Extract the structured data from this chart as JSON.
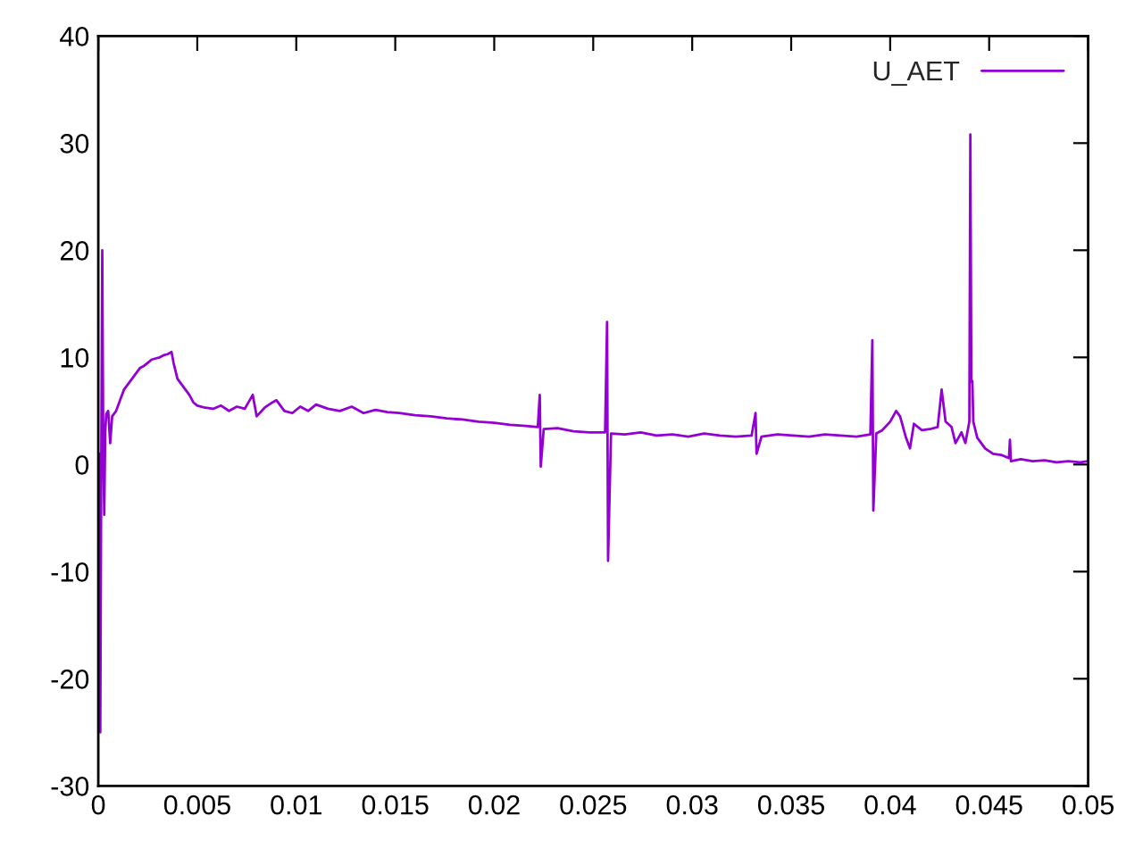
{
  "chart_data": {
    "type": "line",
    "legend": "top right",
    "grid": false,
    "marker": "none",
    "line_style": "solid",
    "xlim": [
      0,
      0.05
    ],
    "xticks": [
      0,
      0.005,
      0.01,
      0.015,
      0.02,
      0.025,
      0.03,
      0.035,
      0.04,
      0.045,
      0.05
    ],
    "ylim": [
      -30,
      40
    ],
    "yticks": [
      -30,
      -20,
      -10,
      0,
      10,
      20,
      30,
      40
    ],
    "series": [
      {
        "name": "U_AET",
        "color": "#9400d3",
        "x": [
          5e-05,
          0.0001,
          0.00015,
          0.0002,
          0.00025,
          0.0003,
          0.00035,
          0.0004,
          0.0005,
          0.0006,
          0.0007,
          0.0009,
          0.0011,
          0.0013,
          0.0015,
          0.0017,
          0.0019,
          0.0021,
          0.0023,
          0.0025,
          0.0027,
          0.0029,
          0.0031,
          0.0033,
          0.0035,
          0.0037,
          0.0038,
          0.004,
          0.0042,
          0.0044,
          0.0046,
          0.0048,
          0.005,
          0.0054,
          0.0058,
          0.0062,
          0.0066,
          0.007,
          0.0074,
          0.0078,
          0.008,
          0.0084,
          0.0088,
          0.009,
          0.0094,
          0.0098,
          0.0102,
          0.0106,
          0.011,
          0.0116,
          0.0122,
          0.0128,
          0.0134,
          0.014,
          0.0146,
          0.0152,
          0.016,
          0.0168,
          0.0176,
          0.0184,
          0.0192,
          0.02,
          0.0208,
          0.0216,
          0.0222,
          0.0223,
          0.02235,
          0.0225,
          0.0232,
          0.024,
          0.0248,
          0.0256,
          0.0257,
          0.02575,
          0.0259,
          0.0266,
          0.0274,
          0.0282,
          0.029,
          0.0298,
          0.0306,
          0.0314,
          0.0322,
          0.033,
          0.0332,
          0.03325,
          0.0335,
          0.0343,
          0.0351,
          0.0359,
          0.0367,
          0.0375,
          0.0383,
          0.039,
          0.0391,
          0.03915,
          0.0393,
          0.0396,
          0.04,
          0.0403,
          0.0405,
          0.0408,
          0.041,
          0.0412,
          0.0416,
          0.042,
          0.0424,
          0.0426,
          0.0428,
          0.0431,
          0.0433,
          0.0436,
          0.0438,
          0.044,
          0.04405,
          0.0441,
          0.04415,
          0.0442,
          0.0444,
          0.0448,
          0.0452,
          0.0456,
          0.046,
          0.04605,
          0.0461,
          0.0466,
          0.0472,
          0.0478,
          0.0484,
          0.049,
          0.0496,
          0.05
        ],
        "values": [
          1,
          -25,
          0,
          20,
          2,
          -4.7,
          3,
          4.7,
          5,
          2,
          4.5,
          5,
          6,
          7,
          7.5,
          8,
          8.5,
          9,
          9.2,
          9.5,
          9.8,
          9.9,
          10,
          10.2,
          10.3,
          10.5,
          9.5,
          8,
          7.5,
          7,
          6.5,
          5.8,
          5.5,
          5.3,
          5.2,
          5.5,
          5,
          5.4,
          5.2,
          6.5,
          4.5,
          5.3,
          5.8,
          6,
          5,
          4.8,
          5.4,
          5,
          5.6,
          5.2,
          5,
          5.4,
          4.8,
          5.1,
          4.9,
          4.8,
          4.6,
          4.5,
          4.3,
          4.2,
          4,
          3.9,
          3.7,
          3.6,
          3.5,
          6.5,
          -0.2,
          3.3,
          3.4,
          3.1,
          3,
          3,
          13.3,
          -9,
          2.9,
          2.8,
          3,
          2.7,
          2.8,
          2.6,
          2.9,
          2.7,
          2.6,
          2.7,
          4.8,
          1,
          2.6,
          2.8,
          2.7,
          2.6,
          2.8,
          2.7,
          2.6,
          2.8,
          11.6,
          -4.3,
          2.9,
          3.2,
          4,
          5,
          4.5,
          2.5,
          1.5,
          3.8,
          3.2,
          3.3,
          3.5,
          7,
          4,
          3.5,
          2,
          3,
          2,
          4,
          30.8,
          7.7,
          7.8,
          4,
          2.5,
          1.5,
          1,
          0.9,
          0.6,
          2.3,
          0.3,
          0.5,
          0.3,
          0.4,
          0.2,
          0.3,
          0.2,
          0.3
        ]
      }
    ]
  }
}
